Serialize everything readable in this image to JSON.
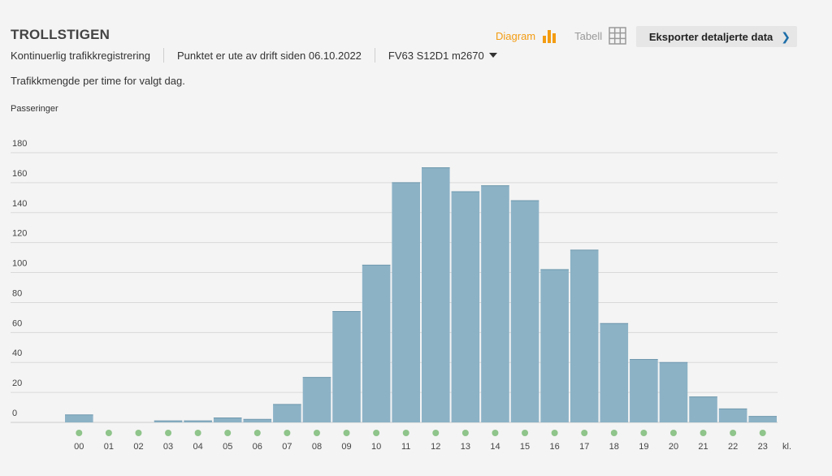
{
  "header": {
    "title": "TROLLSTIGEN",
    "registration": "Kontinuerlig trafikkregistrering",
    "status": "Punktet er ute av drift siden 06.10.2022",
    "road_ref": "FV63 S12D1 m2670",
    "description": "Trafikkmengde per time for valgt dag."
  },
  "views": {
    "diagram_label": "Diagram",
    "table_label": "Tabell"
  },
  "export": {
    "label": "Eksporter detaljerte data"
  },
  "colors": {
    "bar": "#8cb2c6",
    "accent": "#f39c12",
    "dot": "#8fc48a",
    "grid": "#d9d9d9"
  },
  "chart_data": {
    "type": "bar",
    "ylabel": "Passeringer",
    "xlabel": "kl.",
    "ylim": [
      0,
      180
    ],
    "yticks": [
      0,
      20,
      40,
      60,
      80,
      100,
      120,
      140,
      160,
      180
    ],
    "categories": [
      "00",
      "01",
      "02",
      "03",
      "04",
      "05",
      "06",
      "07",
      "08",
      "09",
      "10",
      "11",
      "12",
      "13",
      "14",
      "15",
      "16",
      "17",
      "18",
      "19",
      "20",
      "21",
      "22",
      "23"
    ],
    "values": [
      5,
      0,
      0,
      1,
      1,
      3,
      2,
      12,
      30,
      74,
      105,
      160,
      170,
      154,
      158,
      148,
      102,
      115,
      66,
      42,
      40,
      17,
      9,
      4
    ],
    "grid": true
  }
}
